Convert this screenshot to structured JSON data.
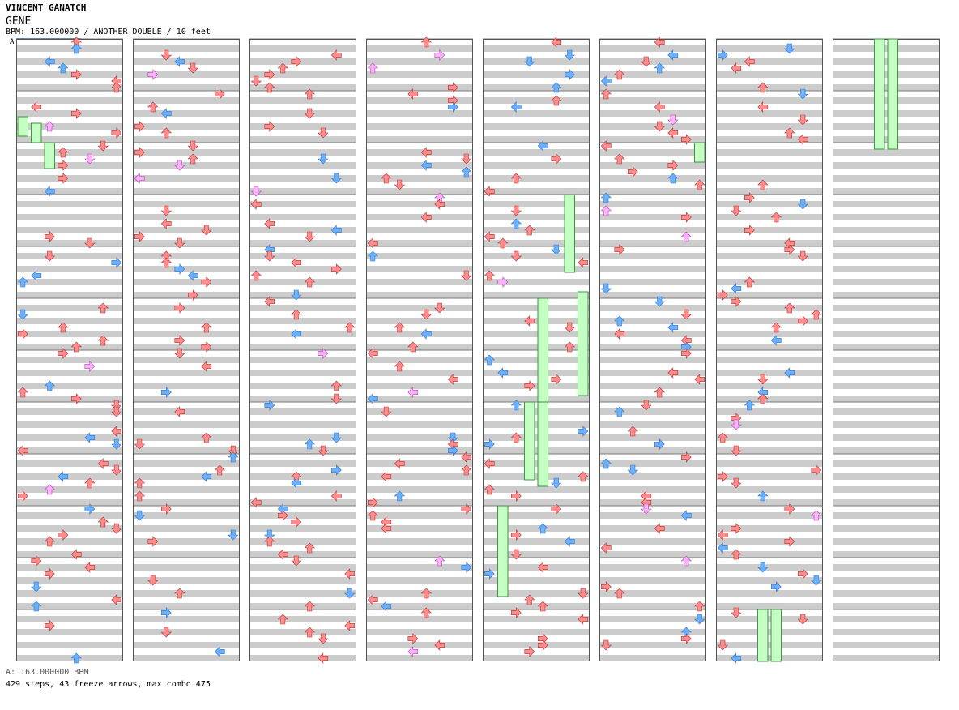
{
  "header": {
    "artist": "VINCENT GANATCH",
    "title": "GENE",
    "info": "BPM: 163.000000 / ANOTHER DOUBLE / 10 feet"
  },
  "bpm_marker": "A",
  "footer": {
    "bpm_legend": "A: 163.000000 BPM",
    "stats": "429 steps, 43 freeze arrows, max combo 475"
  },
  "colors": {
    "red_arrow": "#ff8c8c",
    "blue_arrow": "#6ab0ff",
    "pink_arrow": "#ffb0ff",
    "freeze": "#c4ffc4",
    "stripe": "#cccccc"
  },
  "chart_data": {
    "type": "step-chart",
    "difficulty": "ANOTHER DOUBLE",
    "feet": 10,
    "bpm": 163.0,
    "columns": 8,
    "lanes": 8,
    "measures_per_column": 12,
    "total_steps": 429,
    "freeze_arrows": 43,
    "max_combo": 475
  }
}
